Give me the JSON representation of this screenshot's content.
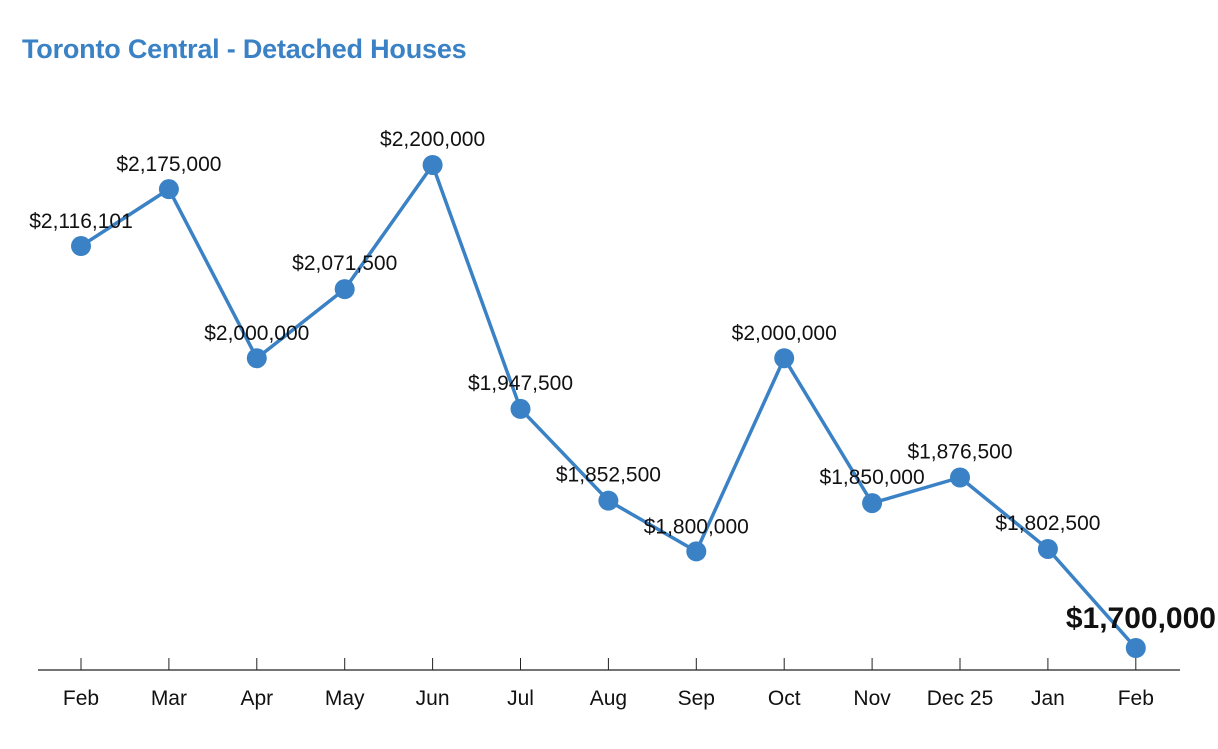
{
  "colors": {
    "line": "#3a82c5",
    "title": "#3a82c5",
    "highlight": "#e64a3b",
    "axis": "#222222",
    "text": "#111111"
  },
  "chart_data": {
    "type": "line",
    "title": "Toronto Central - Detached Houses",
    "xlabel": "",
    "ylabel": "",
    "ylim": [
      1650000,
      2250000
    ],
    "grid": false,
    "legend": "none",
    "categories": [
      "Feb",
      "Mar",
      "Apr",
      "May",
      "Jun",
      "Jul",
      "Aug",
      "Sep",
      "Oct",
      "Nov",
      "Dec 25",
      "Jan",
      "Feb"
    ],
    "series": [
      {
        "name": "Toronto Central - Detached Houses",
        "values": [
          2116101,
          2175000,
          2000000,
          2071500,
          2200000,
          1947500,
          1852500,
          1800000,
          2000000,
          1850000,
          1876500,
          1802500,
          1700000
        ]
      }
    ],
    "data_labels": [
      "$2,116,101",
      "$2,175,000",
      "$2,000,000",
      "$2,071,500",
      "$2,200,000",
      "$1,947,500",
      "$1,852,500",
      "$1,800,000",
      "$2,000,000",
      "$1,850,000",
      "$1,876,500",
      "$1,802,500",
      "$1,700,000"
    ],
    "highlight_index": 12
  }
}
